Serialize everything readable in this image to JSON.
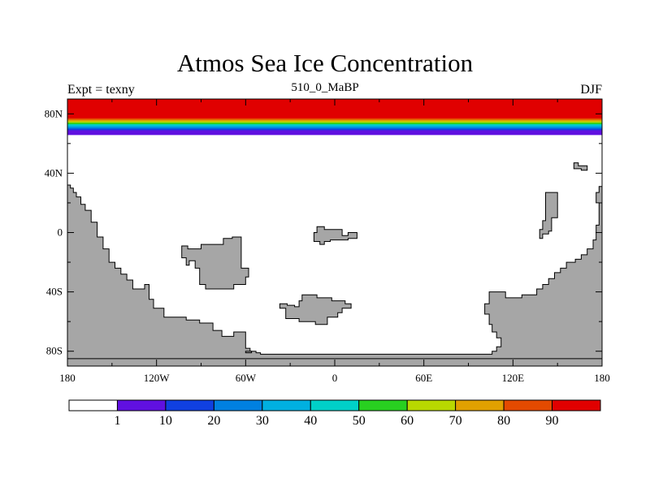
{
  "title": "Atmos Sea Ice Concentration",
  "left_string": "Expt = texny",
  "center_string": "510_0_MaBP",
  "right_string": "DJF",
  "map": {
    "lon_range": [
      -180,
      180
    ],
    "lat_range": [
      -90,
      90
    ],
    "x_ticks": [
      {
        "lon": -180,
        "label": "180"
      },
      {
        "lon": -120,
        "label": "120W"
      },
      {
        "lon": -60,
        "label": "60W"
      },
      {
        "lon": 0,
        "label": "0"
      },
      {
        "lon": 60,
        "label": "60E"
      },
      {
        "lon": 120,
        "label": "120E"
      },
      {
        "lon": 180,
        "label": "180"
      }
    ],
    "y_ticks": [
      {
        "lat": 80,
        "label": "80N"
      },
      {
        "lat": 40,
        "label": "40N"
      },
      {
        "lat": 0,
        "label": "0"
      },
      {
        "lat": -40,
        "label": "40S"
      },
      {
        "lat": -80,
        "label": "80S"
      }
    ],
    "land_color": "#a6a6a6",
    "ice_bands": [
      {
        "lat_from": 90,
        "lat_to": 77,
        "color": "#e00000"
      },
      {
        "lat_from": 77,
        "lat_to": 76,
        "color": "#e34a00"
      },
      {
        "lat_from": 76,
        "lat_to": 75,
        "color": "#e0a000"
      },
      {
        "lat_from": 75,
        "lat_to": 74,
        "color": "#b8d800"
      },
      {
        "lat_from": 74,
        "lat_to": 73,
        "color": "#28d020"
      },
      {
        "lat_from": 73,
        "lat_to": 72,
        "color": "#00d0c8"
      },
      {
        "lat_from": 72,
        "lat_to": 71,
        "color": "#00b0e0"
      },
      {
        "lat_from": 71,
        "lat_to": 70,
        "color": "#0080e0"
      },
      {
        "lat_from": 70,
        "lat_to": 69,
        "color": "#1040e0"
      },
      {
        "lat_from": 69,
        "lat_to": 66,
        "color": "#6010e0"
      }
    ],
    "continents": [
      [
        [
          -180,
          32
        ],
        [
          -178,
          32
        ],
        [
          -178,
          30
        ],
        [
          -176,
          30
        ],
        [
          -176,
          27
        ],
        [
          -174,
          27
        ],
        [
          -174,
          24
        ],
        [
          -171,
          24
        ],
        [
          -171,
          19
        ],
        [
          -168,
          19
        ],
        [
          -168,
          15
        ],
        [
          -164,
          15
        ],
        [
          -164,
          7
        ],
        [
          -160,
          7
        ],
        [
          -160,
          -3
        ],
        [
          -156,
          -3
        ],
        [
          -156,
          -11
        ],
        [
          -152,
          -11
        ],
        [
          -152,
          -20
        ],
        [
          -148,
          -20
        ],
        [
          -148,
          -24
        ],
        [
          -144,
          -24
        ],
        [
          -144,
          -28
        ],
        [
          -140,
          -28
        ],
        [
          -140,
          -32
        ],
        [
          -136,
          -32
        ],
        [
          -136,
          -38
        ],
        [
          -128,
          -38
        ],
        [
          -128,
          -35
        ],
        [
          -125,
          -35
        ],
        [
          -125,
          -45
        ],
        [
          -122,
          -45
        ],
        [
          -122,
          -51
        ],
        [
          -115,
          -51
        ],
        [
          -115,
          -57
        ],
        [
          -100,
          -57
        ],
        [
          -100,
          -59
        ],
        [
          -91,
          -59
        ],
        [
          -91,
          -61
        ],
        [
          -82,
          -61
        ],
        [
          -82,
          -66
        ],
        [
          -76,
          -66
        ],
        [
          -76,
          -70
        ],
        [
          -68,
          -70
        ],
        [
          -68,
          -67
        ],
        [
          -60,
          -67
        ],
        [
          -60,
          -78
        ],
        [
          -57,
          -78
        ],
        [
          -57,
          -80
        ],
        [
          -53,
          -80
        ],
        [
          -53,
          -81
        ],
        [
          -50,
          -81
        ],
        [
          -50,
          -82
        ],
        [
          106,
          -82
        ],
        [
          106,
          -80
        ],
        [
          109,
          -80
        ],
        [
          109,
          -77
        ],
        [
          112,
          -77
        ],
        [
          112,
          -71
        ],
        [
          109,
          -71
        ],
        [
          109,
          -67
        ],
        [
          106,
          -67
        ],
        [
          106,
          -62
        ],
        [
          104,
          -62
        ],
        [
          104,
          -55
        ],
        [
          101,
          -55
        ],
        [
          101,
          -48
        ],
        [
          104,
          -48
        ],
        [
          104,
          -40
        ],
        [
          115,
          -40
        ],
        [
          115,
          -44
        ],
        [
          126,
          -44
        ],
        [
          126,
          -42
        ],
        [
          136,
          -42
        ],
        [
          136,
          -38
        ],
        [
          140,
          -38
        ],
        [
          140,
          -35
        ],
        [
          144,
          -35
        ],
        [
          144,
          -31
        ],
        [
          148,
          -31
        ],
        [
          148,
          -27
        ],
        [
          152,
          -27
        ],
        [
          152,
          -24
        ],
        [
          156,
          -24
        ],
        [
          156,
          -20
        ],
        [
          162,
          -20
        ],
        [
          162,
          -18
        ],
        [
          166,
          -18
        ],
        [
          166,
          -15
        ],
        [
          170,
          -15
        ],
        [
          170,
          -11
        ],
        [
          174,
          -11
        ],
        [
          174,
          -5
        ],
        [
          176,
          -5
        ],
        [
          176,
          5
        ],
        [
          178,
          5
        ],
        [
          178,
          20
        ],
        [
          176,
          20
        ],
        [
          176,
          27
        ],
        [
          178,
          27
        ],
        [
          178,
          31
        ],
        [
          180,
          31
        ],
        [
          180,
          -90
        ],
        [
          -180,
          -90
        ]
      ],
      [
        [
          -60,
          -80
        ],
        [
          -56,
          -80
        ],
        [
          -56,
          -81
        ],
        [
          -60,
          -81
        ]
      ],
      [
        [
          -180,
          -85
        ],
        [
          180,
          -85
        ],
        [
          180,
          -90
        ],
        [
          -180,
          -90
        ]
      ],
      [
        [
          -103,
          -9
        ],
        [
          -99,
          -9
        ],
        [
          -99,
          -11
        ],
        [
          -90,
          -11
        ],
        [
          -90,
          -8
        ],
        [
          -75,
          -8
        ],
        [
          -75,
          -4
        ],
        [
          -69,
          -4
        ],
        [
          -69,
          -3
        ],
        [
          -63,
          -3
        ],
        [
          -63,
          -24
        ],
        [
          -58,
          -24
        ],
        [
          -58,
          -30
        ],
        [
          -60,
          -30
        ],
        [
          -60,
          -35
        ],
        [
          -68,
          -35
        ],
        [
          -68,
          -38
        ],
        [
          -87,
          -38
        ],
        [
          -87,
          -35
        ],
        [
          -91,
          -35
        ],
        [
          -91,
          -24
        ],
        [
          -94,
          -24
        ],
        [
          -94,
          -19
        ],
        [
          -98,
          -19
        ],
        [
          -98,
          -22
        ],
        [
          -100,
          -22
        ],
        [
          -100,
          -17
        ],
        [
          -103,
          -17
        ]
      ],
      [
        [
          -12,
          4
        ],
        [
          -7,
          4
        ],
        [
          -7,
          2
        ],
        [
          5,
          2
        ],
        [
          5,
          -2
        ],
        [
          9,
          -2
        ],
        [
          9,
          0
        ],
        [
          15,
          0
        ],
        [
          15,
          -4
        ],
        [
          9,
          -4
        ],
        [
          9,
          -5
        ],
        [
          -3,
          -5
        ],
        [
          -3,
          -6
        ],
        [
          -7,
          -6
        ],
        [
          -7,
          -8
        ],
        [
          -10,
          -8
        ],
        [
          -10,
          -6
        ],
        [
          -14,
          -6
        ],
        [
          -14,
          0
        ],
        [
          -12,
          0
        ]
      ],
      [
        [
          -22,
          -42
        ],
        [
          -12,
          -42
        ],
        [
          -12,
          -44
        ],
        [
          -2,
          -44
        ],
        [
          -2,
          -46
        ],
        [
          7,
          -46
        ],
        [
          7,
          -48
        ],
        [
          11,
          -48
        ],
        [
          11,
          -51
        ],
        [
          5,
          -51
        ],
        [
          5,
          -54
        ],
        [
          2,
          -54
        ],
        [
          2,
          -57
        ],
        [
          -5,
          -57
        ],
        [
          -5,
          -62
        ],
        [
          -13,
          -62
        ],
        [
          -13,
          -60
        ],
        [
          -24,
          -60
        ],
        [
          -24,
          -58
        ],
        [
          -33,
          -58
        ],
        [
          -33,
          -51
        ],
        [
          -37,
          -51
        ],
        [
          -37,
          -48
        ],
        [
          -32,
          -48
        ],
        [
          -32,
          -49
        ],
        [
          -27,
          -49
        ],
        [
          -27,
          -50
        ],
        [
          -24,
          -50
        ],
        [
          -24,
          -46
        ],
        [
          -22,
          -46
        ]
      ],
      [
        [
          142,
          27
        ],
        [
          150,
          27
        ],
        [
          150,
          10
        ],
        [
          146,
          10
        ],
        [
          146,
          1
        ],
        [
          144,
          1
        ],
        [
          144,
          -1
        ],
        [
          140,
          -1
        ],
        [
          140,
          -4
        ],
        [
          138,
          -4
        ],
        [
          138,
          2
        ],
        [
          140,
          2
        ],
        [
          140,
          8
        ],
        [
          142,
          8
        ]
      ],
      [
        [
          161,
          47
        ],
        [
          164,
          47
        ],
        [
          164,
          45
        ],
        [
          170,
          45
        ],
        [
          170,
          42
        ],
        [
          166,
          42
        ],
        [
          166,
          43
        ],
        [
          161,
          43
        ]
      ]
    ]
  },
  "colorbar": {
    "colors": [
      "#ffffff",
      "#6010e0",
      "#1040e0",
      "#0080e0",
      "#00b0e0",
      "#00d0c8",
      "#28d020",
      "#b8d800",
      "#e0a000",
      "#e34a00",
      "#e00000"
    ],
    "labels": [
      "1",
      "10",
      "20",
      "30",
      "40",
      "50",
      "60",
      "70",
      "80",
      "90"
    ]
  }
}
